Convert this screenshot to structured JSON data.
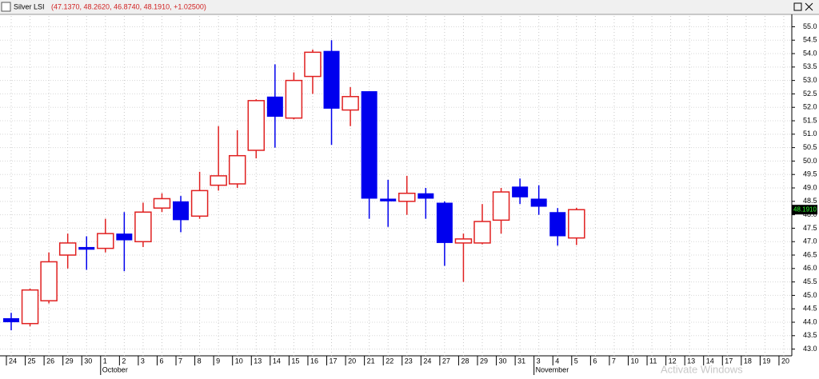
{
  "chart_data": {
    "type": "candlestick",
    "title": "Silver LSI",
    "title_values": "(47.1370, 48.2620, 46.8740, 48.1910, +1.02500)",
    "last_price_label": "48.1910",
    "watermark": "Activate Windows",
    "categories": [
      "24",
      "25",
      "26",
      "29",
      "30",
      "1",
      "2",
      "3",
      "6",
      "7",
      "8",
      "9",
      "10",
      "13",
      "14",
      "15",
      "16",
      "17",
      "20",
      "21",
      "22",
      "23",
      "24",
      "27",
      "28",
      "29",
      "30",
      "31",
      "3",
      "4",
      "5",
      "6",
      "7",
      "10",
      "11",
      "12",
      "13",
      "14",
      "17",
      "18",
      "19",
      "20"
    ],
    "months": [
      {
        "index": 5,
        "label": "October"
      },
      {
        "index": 28,
        "label": "November"
      }
    ],
    "open": [
      44.15,
      43.95,
      44.8,
      46.5,
      46.8,
      46.75,
      47.3,
      47.0,
      48.25,
      48.5,
      47.95,
      49.1,
      49.15,
      50.4,
      52.4,
      51.6,
      53.15,
      54.1,
      51.9,
      52.6,
      48.6,
      48.5,
      48.8,
      48.45,
      46.95,
      46.95,
      47.8,
      49.05,
      48.6,
      48.1,
      47.137,
      null,
      null,
      null,
      null,
      null,
      null,
      null,
      null,
      null,
      null,
      null
    ],
    "high": [
      44.35,
      45.25,
      46.6,
      47.3,
      47.2,
      47.85,
      48.1,
      48.45,
      48.8,
      48.7,
      49.6,
      51.3,
      51.15,
      52.3,
      53.6,
      53.3,
      54.15,
      54.5,
      52.75,
      52.6,
      49.3,
      49.45,
      49.0,
      48.5,
      47.3,
      48.4,
      49.0,
      49.35,
      49.1,
      48.25,
      48.262,
      null,
      null,
      null,
      null,
      null,
      null,
      null,
      null,
      null,
      null,
      null
    ],
    "low": [
      43.7,
      43.85,
      44.7,
      46.0,
      45.95,
      46.6,
      45.9,
      46.8,
      48.1,
      47.35,
      47.85,
      48.9,
      49.0,
      50.1,
      50.5,
      51.55,
      52.5,
      50.6,
      51.3,
      47.85,
      47.55,
      48.0,
      47.85,
      46.1,
      45.5,
      46.9,
      47.3,
      48.4,
      48.0,
      46.85,
      46.874,
      null,
      null,
      null,
      null,
      null,
      null,
      null,
      null,
      null,
      null,
      null
    ],
    "close": [
      44.0,
      45.2,
      46.25,
      46.95,
      46.7,
      47.3,
      47.05,
      48.1,
      48.6,
      47.8,
      48.9,
      49.45,
      50.2,
      52.25,
      51.65,
      53.0,
      54.05,
      51.95,
      52.4,
      48.6,
      48.5,
      48.8,
      48.6,
      46.95,
      47.1,
      47.75,
      48.85,
      48.65,
      48.3,
      47.2,
      48.191,
      null,
      null,
      null,
      null,
      null,
      null,
      null,
      null,
      null,
      null,
      null
    ],
    "up_color": "#e02020",
    "down_color": "#0000ee",
    "ylim": [
      42.75,
      55.4
    ],
    "yticks": [
      {
        "value": 43,
        "label": "43.0"
      },
      {
        "value": 43.5,
        "label": "43.5"
      },
      {
        "value": 44,
        "label": "44.0"
      },
      {
        "value": 44.5,
        "label": "44.5"
      },
      {
        "value": 45,
        "label": "45.0"
      },
      {
        "value": 45.5,
        "label": "45.5"
      },
      {
        "value": 46,
        "label": "46.0"
      },
      {
        "value": 46.5,
        "label": "46.5"
      },
      {
        "value": 47,
        "label": "47.0"
      },
      {
        "value": 47.5,
        "label": "47.5"
      },
      {
        "value": 48,
        "label": "48.0"
      },
      {
        "value": 48.5,
        "label": "48.5"
      },
      {
        "value": 49,
        "label": "49.0"
      },
      {
        "value": 49.5,
        "label": "49.5"
      },
      {
        "value": 50,
        "label": "50.0"
      },
      {
        "value": 50.5,
        "label": "50.5"
      },
      {
        "value": 51,
        "label": "51.0"
      },
      {
        "value": 51.5,
        "label": "51.5"
      },
      {
        "value": 52,
        "label": "52.0"
      },
      {
        "value": 52.5,
        "label": "52.5"
      },
      {
        "value": 53,
        "label": "53.0"
      },
      {
        "value": 53.5,
        "label": "53.5"
      },
      {
        "value": 54,
        "label": "54.0"
      },
      {
        "value": 54.5,
        "label": "54.5"
      },
      {
        "value": 55,
        "label": "55.0"
      }
    ],
    "grid": true
  }
}
